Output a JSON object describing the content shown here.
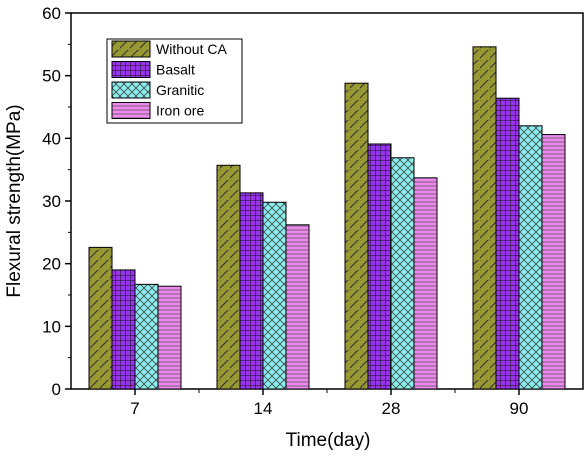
{
  "chart_data": {
    "type": "bar",
    "xlabel": "Time(day)",
    "ylabel": "Flexural strength(MPa)",
    "ylim": [
      0,
      60
    ],
    "yticks": [
      0,
      10,
      20,
      30,
      40,
      50,
      60
    ],
    "categories": [
      "7",
      "14",
      "28",
      "90"
    ],
    "legend_position": "top-left",
    "grid": false,
    "series": [
      {
        "name": "Without CA",
        "color": "#999933",
        "pattern": "diagonal-hatch",
        "values": [
          22.6,
          35.7,
          48.8,
          54.6
        ]
      },
      {
        "name": "Basalt",
        "color": "#9933ee",
        "pattern": "grid",
        "values": [
          19.0,
          31.3,
          39.1,
          46.4
        ]
      },
      {
        "name": "Granitic",
        "color": "#88eeee",
        "pattern": "crosshatch",
        "values": [
          16.7,
          29.8,
          36.9,
          42.0
        ]
      },
      {
        "name": "Iron ore",
        "color": "#ee88ee",
        "pattern": "horizontal-lines",
        "values": [
          16.4,
          26.2,
          33.7,
          40.6
        ]
      }
    ]
  }
}
